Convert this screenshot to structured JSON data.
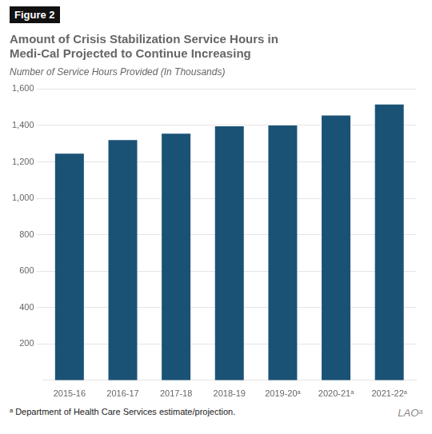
{
  "chart_data": {
    "type": "bar",
    "figure_label": "Figure 2",
    "title": [
      "Amount of Crisis Stabilization Service Hours in",
      "Medi-Cal Projected to Continue Increasing"
    ],
    "subtitle": "Number of Service Hours Provided (In Thousands)",
    "footnote": "ᵃ Department of Health Care Services estimate/projection.",
    "watermark": "LAOᵃ",
    "categories": [
      "2015-16",
      "2016-17",
      "2017-18",
      "2018-19",
      "2019-20ᵃ",
      "2020-21ᵃ",
      "2021-22ᵃ"
    ],
    "values": [
      1245,
      1320,
      1355,
      1395,
      1400,
      1455,
      1515
    ],
    "color": "#1a5276",
    "ylim": [
      0,
      1600
    ],
    "yticks": [
      200,
      400,
      600,
      800,
      {
        "value": 1000,
        "label": "1,000"
      },
      {
        "value": 1200,
        "label": "1,200"
      },
      {
        "value": 1400,
        "label": "1,400"
      },
      {
        "value": 1600,
        "label": "1,600"
      }
    ],
    "grid": true
  }
}
